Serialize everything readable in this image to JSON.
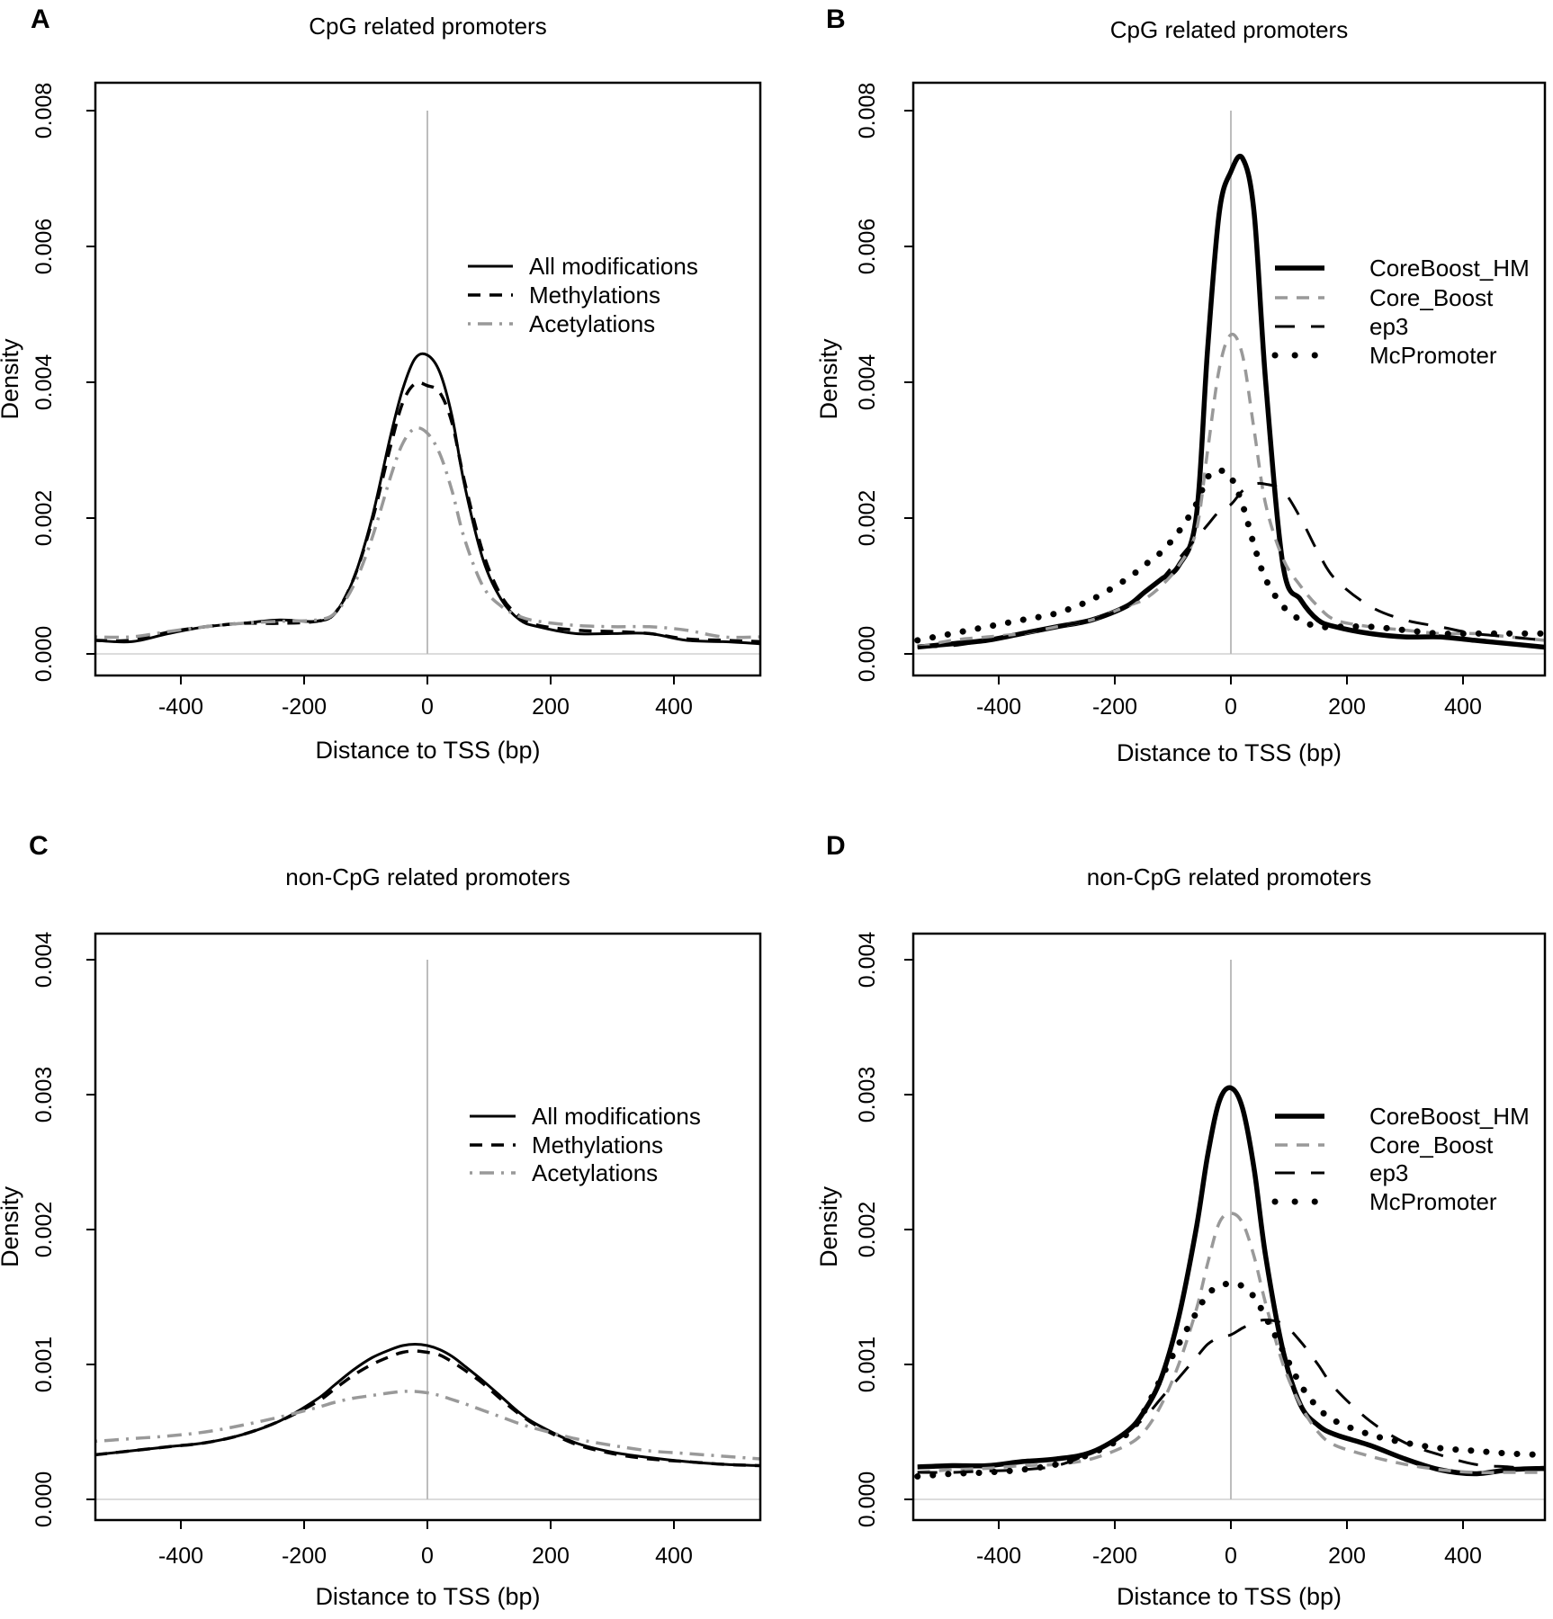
{
  "chart_data": [
    {
      "panel": "A",
      "type": "line",
      "title": "CpG related promoters",
      "xlabel": "Distance to TSS (bp)",
      "ylabel": "Density",
      "xlim": [
        -540,
        540
      ],
      "ylim": [
        0,
        0.008
      ],
      "xticks": [
        "-400",
        "-200",
        "0",
        "200",
        "400"
      ],
      "yticks": [
        "0.000",
        "0.002",
        "0.004",
        "0.006",
        "0.008"
      ],
      "x": [
        -540,
        -480,
        -420,
        -360,
        -300,
        -240,
        -180,
        -150,
        -120,
        -90,
        -60,
        -40,
        -20,
        0,
        20,
        40,
        60,
        90,
        120,
        150,
        180,
        240,
        300,
        360,
        420,
        480,
        540
      ],
      "series": [
        {
          "name": "All modifications",
          "color": "#000000",
          "style": "solid",
          "values": [
            0.0002,
            0.00018,
            0.0003,
            0.0004,
            0.00045,
            0.0005,
            0.00048,
            0.0006,
            0.0011,
            0.002,
            0.0032,
            0.0039,
            0.00435,
            0.0044,
            0.00415,
            0.0035,
            0.0025,
            0.0014,
            0.0008,
            0.0005,
            0.0004,
            0.0003,
            0.0003,
            0.0003,
            0.0002,
            0.00018,
            0.00015
          ]
        },
        {
          "name": "Methylations",
          "color": "#000000",
          "style": "dashed",
          "values": [
            0.0002,
            0.0002,
            0.00032,
            0.0004,
            0.00045,
            0.00045,
            0.00048,
            0.0006,
            0.0011,
            0.00195,
            0.00305,
            0.0037,
            0.00398,
            0.00395,
            0.00385,
            0.0034,
            0.00255,
            0.0015,
            0.00085,
            0.00055,
            0.00042,
            0.00035,
            0.00033,
            0.0003,
            0.00022,
            0.0002,
            0.00018
          ]
        },
        {
          "name": "Acetylations",
          "color": "#999999",
          "style": "dotdash",
          "values": [
            0.00025,
            0.00025,
            0.00033,
            0.0004,
            0.00045,
            0.00048,
            0.0005,
            0.0006,
            0.001,
            0.0017,
            0.0026,
            0.0031,
            0.00332,
            0.00325,
            0.00295,
            0.0024,
            0.0017,
            0.001,
            0.0007,
            0.00055,
            0.00048,
            0.00042,
            0.0004,
            0.0004,
            0.00035,
            0.00025,
            0.00025
          ]
        }
      ],
      "legend_position": "right"
    },
    {
      "panel": "B",
      "type": "line",
      "title": "CpG related promoters",
      "xlabel": "Distance to TSS (bp)",
      "ylabel": "Density",
      "xlim": [
        -540,
        540
      ],
      "ylim": [
        0,
        0.008
      ],
      "xticks": [
        "-400",
        "-200",
        "0",
        "200",
        "400"
      ],
      "yticks": [
        "0.000",
        "0.002",
        "0.004",
        "0.006",
        "0.008"
      ],
      "x": [
        -540,
        -480,
        -420,
        -360,
        -300,
        -240,
        -180,
        -150,
        -120,
        -90,
        -60,
        -40,
        -20,
        0,
        20,
        40,
        60,
        90,
        120,
        150,
        180,
        240,
        300,
        360,
        420,
        480,
        540
      ],
      "series": [
        {
          "name": "CoreBoost_HM",
          "color": "#000000",
          "style": "thick",
          "values": [
            0.0001,
            0.00015,
            0.0002,
            0.0003,
            0.0004,
            0.0005,
            0.0007,
            0.0009,
            0.0011,
            0.0013,
            0.002,
            0.0045,
            0.0065,
            0.0071,
            0.0073,
            0.0065,
            0.004,
            0.0013,
            0.0008,
            0.0005,
            0.0004,
            0.0003,
            0.00025,
            0.00025,
            0.0002,
            0.00015,
            0.0001
          ]
        },
        {
          "name": "Core_Boost",
          "color": "#999999",
          "style": "dashed",
          "values": [
            0.0001,
            0.0002,
            0.00025,
            0.0003,
            0.0004,
            0.0005,
            0.0007,
            0.0008,
            0.001,
            0.0013,
            0.0018,
            0.003,
            0.0042,
            0.0047,
            0.0044,
            0.0033,
            0.0022,
            0.0014,
            0.001,
            0.0007,
            0.0005,
            0.0004,
            0.00035,
            0.0003,
            0.0003,
            0.00025,
            0.0002
          ]
        },
        {
          "name": "ep3",
          "color": "#000000",
          "style": "longdash",
          "values": [
            0.0001,
            0.00012,
            0.0002,
            0.0003,
            0.0004,
            0.0005,
            0.0007,
            0.0009,
            0.0011,
            0.0014,
            0.0017,
            0.0019,
            0.0021,
            0.0022,
            0.0024,
            0.0025,
            0.0025,
            0.0024,
            0.002,
            0.0015,
            0.0011,
            0.0007,
            0.0005,
            0.0004,
            0.0003,
            0.00025,
            0.0002
          ]
        },
        {
          "name": "McPromoter",
          "color": "#000000",
          "style": "dotted",
          "values": [
            0.0002,
            0.0003,
            0.0004,
            0.0005,
            0.0006,
            0.0008,
            0.0011,
            0.0013,
            0.0015,
            0.0018,
            0.0022,
            0.0026,
            0.0027,
            0.0026,
            0.0022,
            0.0016,
            0.0011,
            0.0007,
            0.0005,
            0.0004,
            0.0004,
            0.0004,
            0.00035,
            0.0003,
            0.0003,
            0.0003,
            0.0003
          ]
        }
      ],
      "legend_position": "right"
    },
    {
      "panel": "C",
      "type": "line",
      "title": "non-CpG related promoters",
      "xlabel": "Distance to TSS (bp)",
      "ylabel": "Density",
      "xlim": [
        -540,
        540
      ],
      "ylim": [
        0,
        0.004
      ],
      "xticks": [
        "-400",
        "-200",
        "0",
        "200",
        "400"
      ],
      "yticks": [
        "0.000",
        "0.001",
        "0.002",
        "0.003",
        "0.004"
      ],
      "x": [
        -540,
        -480,
        -420,
        -360,
        -300,
        -240,
        -180,
        -150,
        -120,
        -90,
        -60,
        -40,
        -20,
        0,
        20,
        40,
        60,
        90,
        120,
        150,
        180,
        240,
        300,
        360,
        420,
        480,
        540
      ],
      "series": [
        {
          "name": "All modifications",
          "color": "#000000",
          "style": "solid",
          "values": [
            0.00033,
            0.00036,
            0.00039,
            0.00042,
            0.00048,
            0.00058,
            0.00074,
            0.00085,
            0.00096,
            0.00105,
            0.00111,
            0.00114,
            0.00115,
            0.00114,
            0.00111,
            0.00106,
            0.00099,
            0.00088,
            0.00076,
            0.00064,
            0.00055,
            0.00042,
            0.00035,
            0.00031,
            0.00028,
            0.00026,
            0.00025
          ]
        },
        {
          "name": "Methylations",
          "color": "#000000",
          "style": "dashed",
          "values": [
            0.00033,
            0.00036,
            0.00039,
            0.00042,
            0.00048,
            0.00058,
            0.00072,
            0.00082,
            0.00092,
            0.001,
            0.00106,
            0.00109,
            0.0011,
            0.00109,
            0.00107,
            0.00102,
            0.00096,
            0.00086,
            0.00074,
            0.00063,
            0.00054,
            0.00041,
            0.00034,
            0.0003,
            0.00028,
            0.00026,
            0.00025
          ]
        },
        {
          "name": "Acetylations",
          "color": "#999999",
          "style": "dotdash",
          "values": [
            0.00043,
            0.00045,
            0.00047,
            0.0005,
            0.00055,
            0.00061,
            0.00068,
            0.00072,
            0.00075,
            0.00077,
            0.00079,
            0.0008,
            0.0008,
            0.00079,
            0.00077,
            0.00074,
            0.00071,
            0.00066,
            0.00061,
            0.00056,
            0.00052,
            0.00045,
            0.0004,
            0.00036,
            0.00034,
            0.00032,
            0.0003
          ]
        }
      ],
      "legend_position": "right"
    },
    {
      "panel": "D",
      "type": "line",
      "title": "non-CpG related promoters",
      "xlabel": "Distance to TSS (bp)",
      "ylabel": "Density",
      "xlim": [
        -540,
        540
      ],
      "ylim": [
        0,
        0.004
      ],
      "xticks": [
        "-400",
        "-200",
        "0",
        "200",
        "400"
      ],
      "yticks": [
        "0.000",
        "0.001",
        "0.002",
        "0.003",
        "0.004"
      ],
      "x": [
        -540,
        -480,
        -420,
        -360,
        -300,
        -240,
        -180,
        -150,
        -120,
        -90,
        -60,
        -40,
        -20,
        0,
        20,
        40,
        60,
        90,
        120,
        150,
        180,
        240,
        300,
        360,
        420,
        480,
        540
      ],
      "series": [
        {
          "name": "CoreBoost_HM",
          "color": "#000000",
          "style": "thick",
          "values": [
            0.00024,
            0.00025,
            0.00025,
            0.00028,
            0.0003,
            0.00035,
            0.0005,
            0.00065,
            0.0009,
            0.00135,
            0.002,
            0.00255,
            0.00295,
            0.00305,
            0.0029,
            0.00245,
            0.0018,
            0.0011,
            0.0007,
            0.00055,
            0.00048,
            0.0004,
            0.0003,
            0.00022,
            0.00019,
            0.00022,
            0.00023
          ]
        },
        {
          "name": "Core_Boost",
          "color": "#999999",
          "style": "dashed",
          "values": [
            0.0002,
            0.00022,
            0.00023,
            0.00025,
            0.00026,
            0.0003,
            0.0004,
            0.0005,
            0.0007,
            0.001,
            0.0014,
            0.00175,
            0.00205,
            0.00212,
            0.00205,
            0.0018,
            0.00145,
            0.001,
            0.0007,
            0.0005,
            0.0004,
            0.00032,
            0.00026,
            0.00022,
            0.0002,
            0.0002,
            0.0002
          ]
        },
        {
          "name": "ep3",
          "color": "#000000",
          "style": "longdash",
          "values": [
            0.0002,
            0.0002,
            0.00021,
            0.00022,
            0.00025,
            0.00035,
            0.0005,
            0.0006,
            0.00075,
            0.0009,
            0.00105,
            0.00115,
            0.0012,
            0.00122,
            0.00127,
            0.00131,
            0.00133,
            0.0013,
            0.00117,
            0.001,
            0.00082,
            0.00058,
            0.00042,
            0.00033,
            0.00026,
            0.00024,
            0.00022
          ]
        },
        {
          "name": "McPromoter",
          "color": "#000000",
          "style": "dotted",
          "values": [
            0.00017,
            0.00019,
            0.0002,
            0.00022,
            0.00026,
            0.00034,
            0.00048,
            0.00065,
            0.0009,
            0.00115,
            0.00138,
            0.00152,
            0.00158,
            0.0016,
            0.00158,
            0.0015,
            0.00135,
            0.0011,
            0.00085,
            0.00068,
            0.00058,
            0.00048,
            0.00042,
            0.00038,
            0.00036,
            0.00034,
            0.00033
          ]
        }
      ],
      "legend_position": "right"
    }
  ]
}
